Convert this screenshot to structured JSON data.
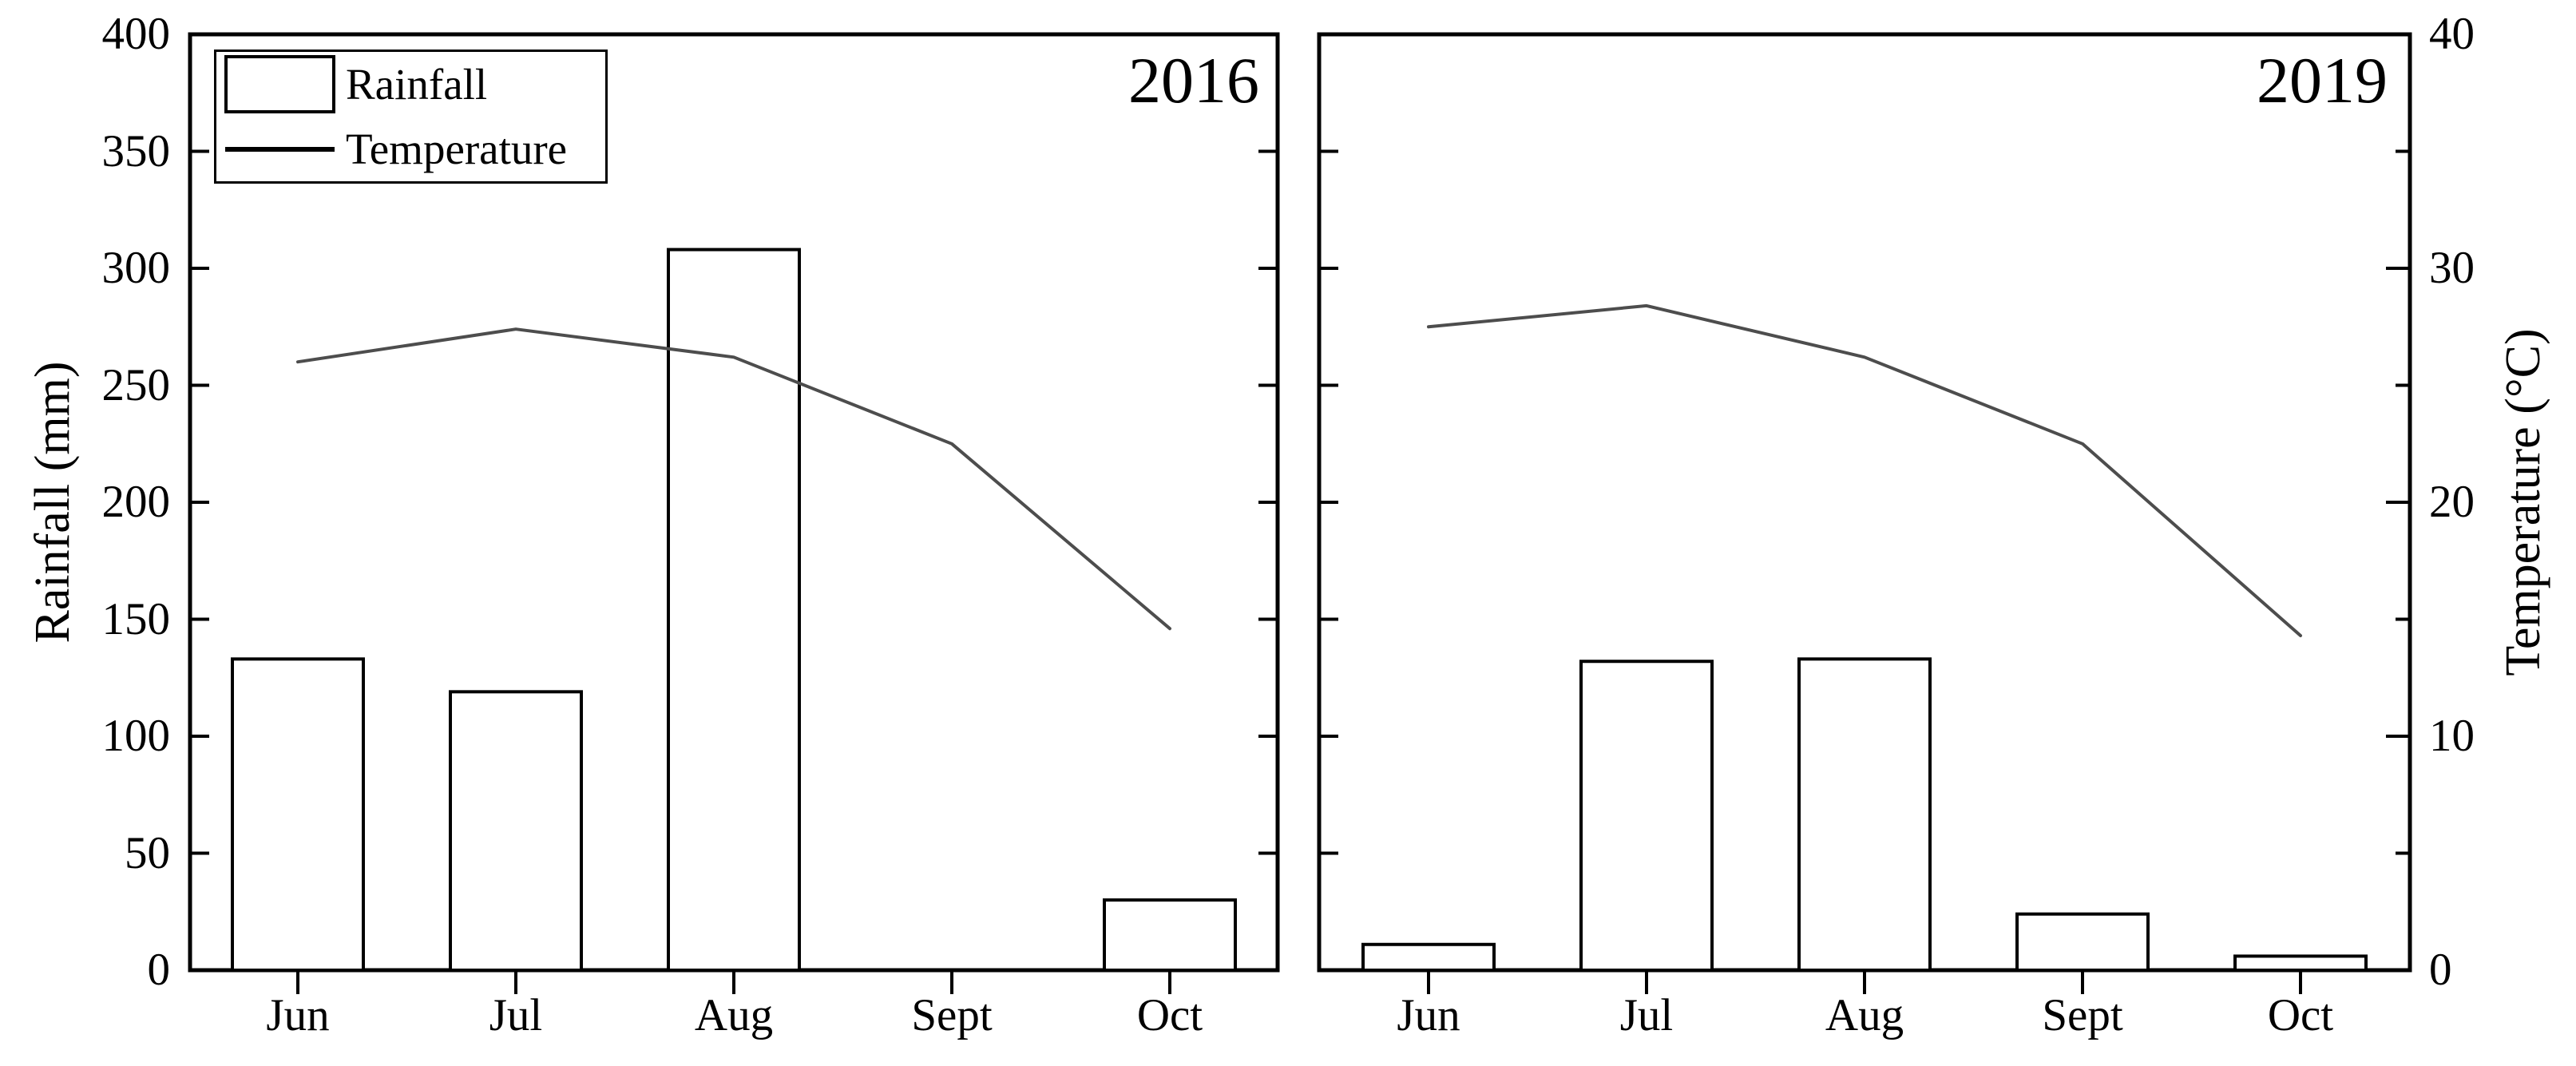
{
  "figure": {
    "background": "#ffffff",
    "axis_color": "#000000",
    "text_color": "#000000",
    "temperature_line_color": "#4d4d4d",
    "bar_fill": "#ffffff",
    "bar_stroke": "#000000"
  },
  "left_axis_title": "Rainfall (mm)",
  "right_axis_title": "Temperature (°C)",
  "legend": {
    "items": [
      {
        "label": "Rainfall",
        "swatch": "bar"
      },
      {
        "label": "Temperature",
        "swatch": "line"
      }
    ]
  },
  "chart_data": [
    {
      "type": "bar+line",
      "title": "2016",
      "categories": [
        "Jun",
        "Jul",
        "Aug",
        "Sept",
        "Oct"
      ],
      "series": [
        {
          "name": "Rainfall",
          "type": "bar",
          "axis": "left",
          "unit": "mm",
          "values": [
            133,
            119,
            308,
            0,
            30
          ]
        },
        {
          "name": "Temperature",
          "type": "line",
          "axis": "right",
          "unit": "°C",
          "values": [
            26.0,
            27.4,
            26.2,
            22.5,
            14.6
          ]
        }
      ],
      "ylabel_left": "Rainfall (mm)",
      "ylabel_right": "Temperature (°C)",
      "ylim_left": [
        0,
        400
      ],
      "ylim_right": [
        0,
        40
      ],
      "yticks_left": [
        0,
        50,
        100,
        150,
        200,
        250,
        300,
        350,
        400
      ],
      "yticks_right": [
        0,
        10,
        20,
        30,
        40
      ],
      "yticks_right_minor": [
        5,
        15,
        25,
        35
      ],
      "grid": false,
      "legend_position": "top-left"
    },
    {
      "type": "bar+line",
      "title": "2019",
      "categories": [
        "Jun",
        "Jul",
        "Aug",
        "Sept",
        "Oct"
      ],
      "series": [
        {
          "name": "Rainfall",
          "type": "bar",
          "axis": "left",
          "unit": "mm",
          "values": [
            11,
            132,
            133,
            24,
            6
          ]
        },
        {
          "name": "Temperature",
          "type": "line",
          "axis": "right",
          "unit": "°C",
          "values": [
            27.5,
            28.4,
            26.2,
            22.5,
            14.3
          ]
        }
      ],
      "ylabel_left": "Rainfall (mm)",
      "ylabel_right": "Temperature (°C)",
      "ylim_left": [
        0,
        400
      ],
      "ylim_right": [
        0,
        40
      ],
      "yticks_left": [
        0,
        50,
        100,
        150,
        200,
        250,
        300,
        350,
        400
      ],
      "yticks_right": [
        0,
        10,
        20,
        30,
        40
      ],
      "yticks_right_minor": [
        5,
        15,
        25,
        35
      ],
      "grid": false,
      "legend_position": "none"
    }
  ]
}
